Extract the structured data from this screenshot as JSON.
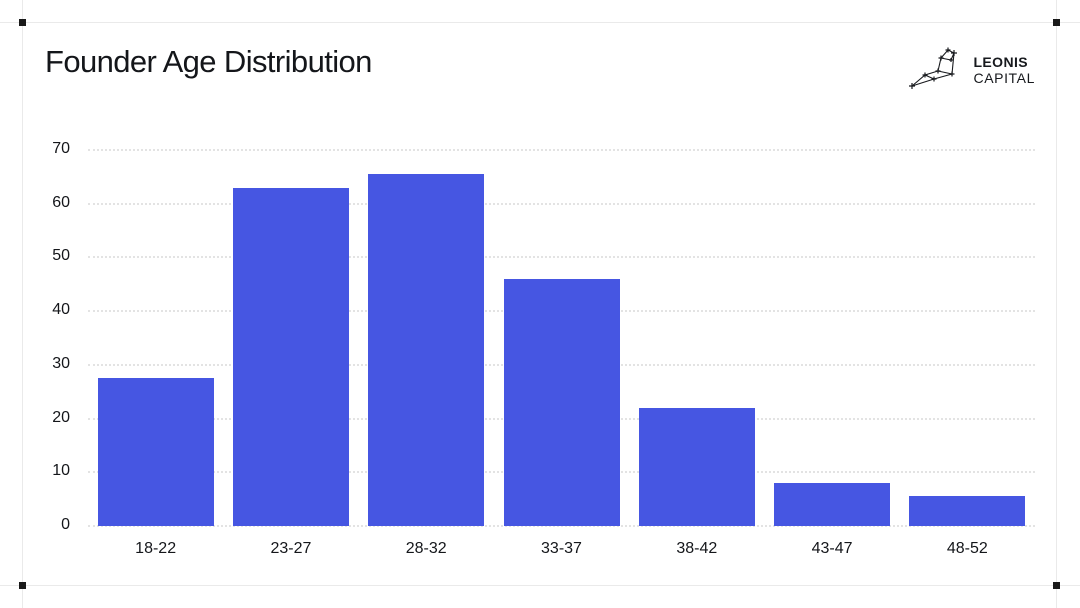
{
  "page": {
    "title": "Founder Age Distribution"
  },
  "logo": {
    "line1": "LEONIS",
    "line2": "CAPITAL",
    "icon": "leo-constellation-icon"
  },
  "chart_data": {
    "type": "bar",
    "title": "Founder Age Distribution",
    "categories": [
      "18-22",
      "23-27",
      "28-32",
      "33-37",
      "38-42",
      "43-47",
      "48-52"
    ],
    "values": [
      27.5,
      63,
      65.5,
      46,
      22,
      8,
      5.5
    ],
    "xlabel": "",
    "ylabel": "",
    "ylim": [
      0,
      70
    ],
    "yticks": [
      0,
      10,
      20,
      30,
      40,
      50,
      60,
      70
    ],
    "grid": "horizontal-dotted",
    "legend": false,
    "bar_color": "#4656e2"
  },
  "colors": {
    "bar": "#4656e2",
    "gridline": "#e3e3e3",
    "text": "#14161a",
    "frame_line": "#eaeaea",
    "handle": "#191919",
    "background": "#ffffff"
  }
}
